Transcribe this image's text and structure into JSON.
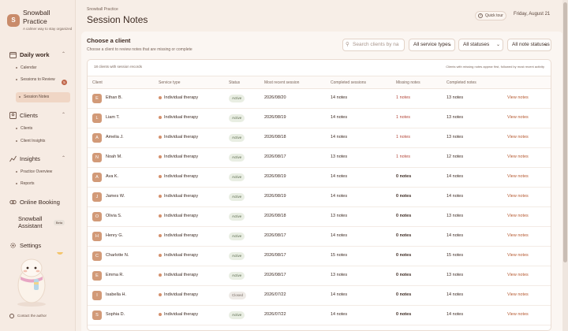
{
  "brand": {
    "initial": "S",
    "name": "Snowball Practice",
    "tagline": "A calmer way to stay organized"
  },
  "sidebar": {
    "daily_work": {
      "label": "Daily work",
      "items": [
        {
          "label": "Calendar"
        },
        {
          "label": "Sessions to Review",
          "badge": "5"
        },
        {
          "label": "Session Notes",
          "active": true
        }
      ]
    },
    "clients": {
      "label": "Clients",
      "items": [
        {
          "label": "Clients"
        },
        {
          "label": "Client Insights"
        }
      ]
    },
    "insights": {
      "label": "Insights",
      "items": [
        {
          "label": "Practice Overview"
        },
        {
          "label": "Reports"
        }
      ]
    },
    "online_booking": "Online Booking",
    "assistant": {
      "label": "Snowball Assistant",
      "badge": "Beta"
    },
    "settings": "Settings",
    "contact": "Contact the author"
  },
  "header": {
    "breadcrumb": "Snowball Practice",
    "title": "Session Notes",
    "quick_tour": "Quick tour",
    "date": "Friday, August 21"
  },
  "filters": {
    "title": "Choose a client",
    "subtitle": "Choose a client to review notes that are missing or complete",
    "search_placeholder": "Search clients by na",
    "service_type": "All service types",
    "status": "All statuses",
    "note_status": "All note statuses"
  },
  "table": {
    "summary": "18 clients with session records",
    "hint": "Clients with missing notes appear first, followed by most recent activity",
    "columns": [
      "Client",
      "Service type",
      "Status",
      "Most recent session",
      "Completed sessions",
      "Missing notes",
      "Completed notes"
    ],
    "action_label": "View notes",
    "rows": [
      {
        "initial": "E",
        "name": "Ethan B.",
        "service": "Individual therapy",
        "status": "Active",
        "recent": "2026/08/20",
        "completed_sessions": "14 notes",
        "missing": "1 notes",
        "completed_notes": "13 notes"
      },
      {
        "initial": "L",
        "name": "Liam T.",
        "service": "Individual therapy",
        "status": "Active",
        "recent": "2026/08/19",
        "completed_sessions": "14 notes",
        "missing": "1 notes",
        "completed_notes": "13 notes"
      },
      {
        "initial": "A",
        "name": "Amelia J.",
        "service": "Individual therapy",
        "status": "Active",
        "recent": "2026/08/18",
        "completed_sessions": "14 notes",
        "missing": "1 notes",
        "completed_notes": "13 notes"
      },
      {
        "initial": "N",
        "name": "Noah M.",
        "service": "Individual therapy",
        "status": "Active",
        "recent": "2026/08/17",
        "completed_sessions": "13 notes",
        "missing": "1 notes",
        "completed_notes": "12 notes"
      },
      {
        "initial": "A",
        "name": "Ava K.",
        "service": "Individual therapy",
        "status": "Active",
        "recent": "2026/08/19",
        "completed_sessions": "14 notes",
        "missing": "0 notes",
        "completed_notes": "14 notes"
      },
      {
        "initial": "J",
        "name": "James W.",
        "service": "Individual therapy",
        "status": "Active",
        "recent": "2026/08/19",
        "completed_sessions": "14 notes",
        "missing": "0 notes",
        "completed_notes": "14 notes"
      },
      {
        "initial": "O",
        "name": "Olivia S.",
        "service": "Individual therapy",
        "status": "Active",
        "recent": "2026/08/18",
        "completed_sessions": "13 notes",
        "missing": "0 notes",
        "completed_notes": "13 notes"
      },
      {
        "initial": "H",
        "name": "Henry G.",
        "service": "Individual therapy",
        "status": "Active",
        "recent": "2026/08/17",
        "completed_sessions": "14 notes",
        "missing": "0 notes",
        "completed_notes": "14 notes"
      },
      {
        "initial": "C",
        "name": "Charlotte N.",
        "service": "Individual therapy",
        "status": "Active",
        "recent": "2026/08/17",
        "completed_sessions": "15 notes",
        "missing": "0 notes",
        "completed_notes": "15 notes"
      },
      {
        "initial": "E",
        "name": "Emma R.",
        "service": "Individual therapy",
        "status": "Active",
        "recent": "2026/08/17",
        "completed_sessions": "13 notes",
        "missing": "0 notes",
        "completed_notes": "13 notes"
      },
      {
        "initial": "I",
        "name": "Isabella H.",
        "service": "Individual therapy",
        "status": "Closed",
        "recent": "2026/07/22",
        "completed_sessions": "14 notes",
        "missing": "0 notes",
        "completed_notes": "14 notes"
      },
      {
        "initial": "S",
        "name": "Sophia D.",
        "service": "Individual therapy",
        "status": "Active",
        "recent": "2026/07/22",
        "completed_sessions": "14 notes",
        "missing": "0 notes",
        "completed_notes": "14 notes"
      }
    ]
  }
}
